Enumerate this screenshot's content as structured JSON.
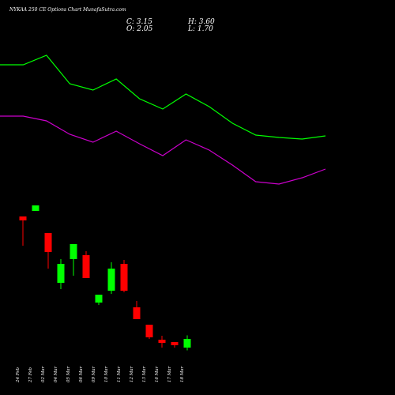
{
  "chart_data": [
    {
      "type": "candlestick",
      "title": "NYKAA 250 CE Options Chart MunafaSutra.com",
      "ohlc_text": [
        "C: 3.15",
        "H: 3.60",
        "O: 2.05",
        "L: 1.70"
      ],
      "categories": [
        "24 Feb",
        "27 Feb",
        "02 Mar",
        "04 Mar",
        "05 Mar",
        "06 Mar",
        "09 Mar",
        "10 Mar",
        "11 Mar",
        "12 Mar",
        "13 Mar",
        "16 Mar",
        "17 Mar",
        "18 Mar"
      ],
      "open": [
        18.65,
        19.35,
        16.55,
        10.25,
        13.25,
        13.75,
        7.75,
        9.25,
        12.65,
        7.15,
        4.95,
        3.05,
        2.75,
        2.05
      ],
      "high": [
        18.65,
        20.05,
        16.55,
        13.25,
        15.15,
        14.25,
        8.75,
        12.85,
        13.15,
        7.95,
        4.95,
        3.55,
        2.75,
        3.6
      ],
      "low": [
        14.95,
        19.35,
        12.05,
        9.45,
        11.15,
        10.85,
        7.45,
        8.85,
        9.05,
        5.65,
        3.15,
        2.05,
        2.05,
        1.7
      ],
      "close": [
        18.15,
        20.05,
        14.15,
        12.65,
        15.15,
        10.85,
        8.75,
        12.05,
        9.25,
        5.65,
        3.35,
        2.65,
        2.35,
        3.15
      ],
      "up_color": "#00ff00",
      "down_color": "#ff0000",
      "ylim": [
        0,
        44
      ]
    },
    {
      "type": "line",
      "categories": [
        null,
        null,
        null,
        null,
        null,
        null,
        null,
        null,
        null,
        null,
        null,
        null,
        null,
        null,
        null
      ],
      "series": [
        {
          "color": "#00ff00",
          "values": [
            37.85,
            37.85,
            39.05,
            35.45,
            34.65,
            36.05,
            33.55,
            32.25,
            34.15,
            32.55,
            30.45,
            28.95,
            28.65,
            28.45,
            28.85
          ]
        },
        {
          "color": "#cc00cc",
          "values": [
            31.35,
            31.35,
            30.75,
            29.05,
            28.05,
            29.45,
            27.85,
            26.35,
            28.35,
            27.05,
            25.15,
            23.05,
            22.75,
            23.55,
            24.65
          ]
        }
      ],
      "ylim": [
        0,
        44
      ]
    }
  ]
}
